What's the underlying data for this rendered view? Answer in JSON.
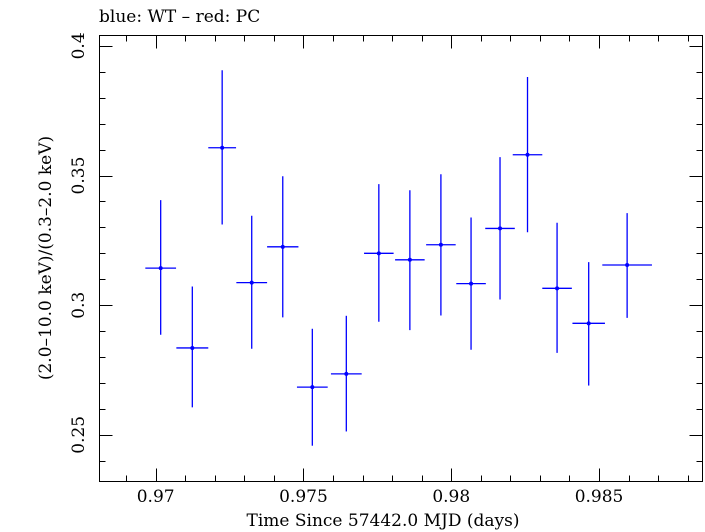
{
  "chart_data": {
    "type": "scatter",
    "title": "blue: WT – red: PC",
    "xlabel": "Time Since 57442.0 MJD (days)",
    "ylabel": "(2.0–10.0 keV)/(0.3–2.0 keV)",
    "xlim": [
      0.9681,
      0.9885
    ],
    "ylim": [
      0.232,
      0.404
    ],
    "x_ticks": [
      {
        "value": 0.97,
        "label": "0.97"
      },
      {
        "value": 0.975,
        "label": "0.975"
      },
      {
        "value": 0.98,
        "label": "0.98"
      },
      {
        "value": 0.985,
        "label": "0.985"
      }
    ],
    "y_ticks": [
      {
        "value": 0.25,
        "label": "0.25"
      },
      {
        "value": 0.3,
        "label": "0.3"
      },
      {
        "value": 0.35,
        "label": "0.35"
      },
      {
        "value": 0.4,
        "label": "0.4"
      }
    ],
    "x_minor_step": 0.001,
    "y_minor_step": 0.01,
    "series": [
      {
        "name": "WT",
        "color": "#0000ff",
        "points": [
          {
            "x": 0.97017,
            "y": 0.3143,
            "xerr": 0.00052,
            "ylo": 0.2886,
            "yhi": 0.3405
          },
          {
            "x": 0.97124,
            "y": 0.2835,
            "xerr": 0.00054,
            "ylo": 0.2606,
            "yhi": 0.3072
          },
          {
            "x": 0.97225,
            "y": 0.3607,
            "xerr": 0.00047,
            "ylo": 0.3311,
            "yhi": 0.3906
          },
          {
            "x": 0.97325,
            "y": 0.3087,
            "xerr": 0.00052,
            "ylo": 0.2832,
            "yhi": 0.3345
          },
          {
            "x": 0.9743,
            "y": 0.3225,
            "xerr": 0.00053,
            "ylo": 0.2953,
            "yhi": 0.3497
          },
          {
            "x": 0.9753,
            "y": 0.2684,
            "xerr": 0.00052,
            "ylo": 0.2458,
            "yhi": 0.2909
          },
          {
            "x": 0.97645,
            "y": 0.2735,
            "xerr": 0.00052,
            "ylo": 0.2513,
            "yhi": 0.2959
          },
          {
            "x": 0.97755,
            "y": 0.32,
            "xerr": 0.0005,
            "ylo": 0.2936,
            "yhi": 0.3467
          },
          {
            "x": 0.9786,
            "y": 0.3175,
            "xerr": 0.0005,
            "ylo": 0.2904,
            "yhi": 0.3443
          },
          {
            "x": 0.97965,
            "y": 0.3233,
            "xerr": 0.0005,
            "ylo": 0.296,
            "yhi": 0.3505
          },
          {
            "x": 0.98067,
            "y": 0.3083,
            "xerr": 0.0005,
            "ylo": 0.2828,
            "yhi": 0.3338
          },
          {
            "x": 0.98165,
            "y": 0.3296,
            "xerr": 0.0005,
            "ylo": 0.3022,
            "yhi": 0.3571
          },
          {
            "x": 0.98258,
            "y": 0.358,
            "xerr": 0.0005,
            "ylo": 0.3281,
            "yhi": 0.388
          },
          {
            "x": 0.98358,
            "y": 0.3065,
            "xerr": 0.0005,
            "ylo": 0.2816,
            "yhi": 0.3318
          },
          {
            "x": 0.98465,
            "y": 0.293,
            "xerr": 0.00055,
            "ylo": 0.269,
            "yhi": 0.3166
          },
          {
            "x": 0.98595,
            "y": 0.3155,
            "xerr": 0.00084,
            "ylo": 0.2951,
            "yhi": 0.3355
          }
        ]
      }
    ]
  }
}
